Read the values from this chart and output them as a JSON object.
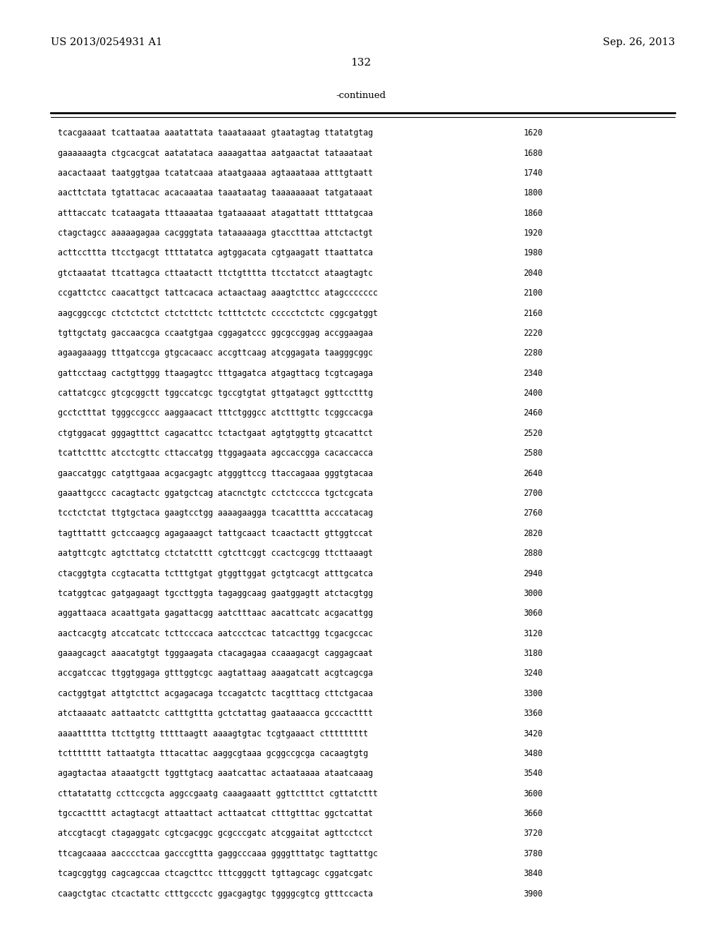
{
  "header_left": "US 2013/0254931 A1",
  "header_right": "Sep. 26, 2013",
  "page_number": "132",
  "continued_label": "-continued",
  "background_color": "#ffffff",
  "text_color": "#000000",
  "sequence_lines": [
    [
      "tcacgaaaat tcattaataa aaatattata taaataaaat gtaatagtag ttatatgtag",
      "1620"
    ],
    [
      "gaaaaaagta ctgcacgcat aatatataca aaaagattaa aatgaactat tataaataat",
      "1680"
    ],
    [
      "aacactaaat taatggtgaa tcatatcaaa ataatgaaaa agtaaataaa atttgtaatt",
      "1740"
    ],
    [
      "aacttctata tgtattacac acacaaataa taaataatag taaaaaaaat tatgataaat",
      "1800"
    ],
    [
      "atttaccatc tcataagata tttaaaataa tgataaaaat atagattatt ttttatgcaa",
      "1860"
    ],
    [
      "ctagctagcc aaaaagagaa cacgggtata tataaaaaga gtacctttaa attctactgt",
      "1920"
    ],
    [
      "acttccttta ttcctgacgt ttttatatca agtggacata cgtgaagatt ttaattatca",
      "1980"
    ],
    [
      "gtctaaatat ttcattagca cttaatactt ttctgtttta ttcctatcct ataagtagtc",
      "2040"
    ],
    [
      "ccgattctcc caacattgct tattcacaca actaactaag aaagtcttcc atagccccccc",
      "2100"
    ],
    [
      "aagcggccgc ctctctctct ctctcttctc tctttctctc ccccctctctc cggcgatggt",
      "2160"
    ],
    [
      "tgttgctatg gaccaacgca ccaatgtgaa cggagatccc ggcgccggag accggaagaa",
      "2220"
    ],
    [
      "agaagaaagg tttgatccga gtgcacaacc accgttcaag atcggagata taagggcggc",
      "2280"
    ],
    [
      "gattcctaag cactgttggg ttaagagtcc tttgagatca atgagttacg tcgtcagaga",
      "2340"
    ],
    [
      "cattatcgcc gtcgcggctt tggccatcgc tgccgtgtat gttgatagct ggttcctttg",
      "2400"
    ],
    [
      "gcctctttat tgggccgccc aaggaacact tttctgggcc atctttgttc tcggccacga",
      "2460"
    ],
    [
      "ctgtggacat gggagtttct cagacattcc tctactgaat agtgtggttg gtcacattct",
      "2520"
    ],
    [
      "tcattctttc atcctcgttc cttaccatgg ttggagaata agccaccgga cacaccacca",
      "2580"
    ],
    [
      "gaaccatggc catgttgaaa acgacgagtc atgggttccg ttaccagaaa gggtgtacaa",
      "2640"
    ],
    [
      "gaaattgccc cacagtactc ggatgctcag atacnctgtc cctctcccca tgctcgcata",
      "2700"
    ],
    [
      "tcctctctat ttgtgctaca gaagtcctgg aaaagaagga tcacatttta acccatacag",
      "2760"
    ],
    [
      "tagtttattt gctccaagcg agagaaagct tattgcaact tcaactactt gttggtccat",
      "2820"
    ],
    [
      "aatgttcgtc agtcttatcg ctctatcttt cgtcttcggt ccactcgcgg ttcttaaagt",
      "2880"
    ],
    [
      "ctacggtgta ccgtacatta tctttgtgat gtggttggat gctgtcacgt atttgcatca",
      "2940"
    ],
    [
      "tcatggtcac gatgagaagt tgccttggta tagaggcaag gaatggagtt atctacgtgg",
      "3000"
    ],
    [
      "aggattaaca acaattgata gagattacgg aatctttaac aacattcatc acgacattgg",
      "3060"
    ],
    [
      "aactcacgtg atccatcatc tcttcccaca aatccctcac tatcacttgg tcgacgccac",
      "3120"
    ],
    [
      "gaaagcagct aaacatgtgt tgggaagata ctacagagaa ccaaagacgt caggagcaat",
      "3180"
    ],
    [
      "accgatccac ttggtggaga gtttggtcgc aagtattaag aaagatcatt acgtcagcga",
      "3240"
    ],
    [
      "cactggtgat attgtcttct acgagacaga tccagatctc tacgtttacg cttctgacaa",
      "3300"
    ],
    [
      "atctaaaatc aattaatctc catttgttta gctctattag gaataaacca gcccactttt",
      "3360"
    ],
    [
      "aaaattttta ttcttgttg tttttaagtt aaaagtgtac tcgtgaaact cttttttttt",
      "3420"
    ],
    [
      "tcttttttt tattaatgta tttacattac aaggcgtaaa gcggccgcga cacaagtgtg",
      "3480"
    ],
    [
      "agagtactaa ataaatgctt tggttgtacg aaatcattac actaataaaa ataatcaaag",
      "3540"
    ],
    [
      "cttatatattg ccttccgcta aggccgaatg caaagaaatt ggttctttct cgttatcttt",
      "3600"
    ],
    [
      "tgccactttt actagtacgt attaattact acttaatcat ctttgtttac ggctcattat",
      "3660"
    ],
    [
      "atccgtacgt ctagaggatc cgtcgacggc gcgcccgatc atcggaitat agttcctcct",
      "3720"
    ],
    [
      "ttcagcaaaa aacccctcaa gacccgttta gaggcccaaa ggggtttatgc tagttattgc",
      "3780"
    ],
    [
      "tcagcggtgg cagcagccaa ctcagcttcc tttcgggctt tgttagcagc cggatcgatc",
      "3840"
    ],
    [
      "caagctgtac ctcactattc ctttgccctc ggacgagtgc tggggcgtcg gtttccacta",
      "3900"
    ]
  ]
}
